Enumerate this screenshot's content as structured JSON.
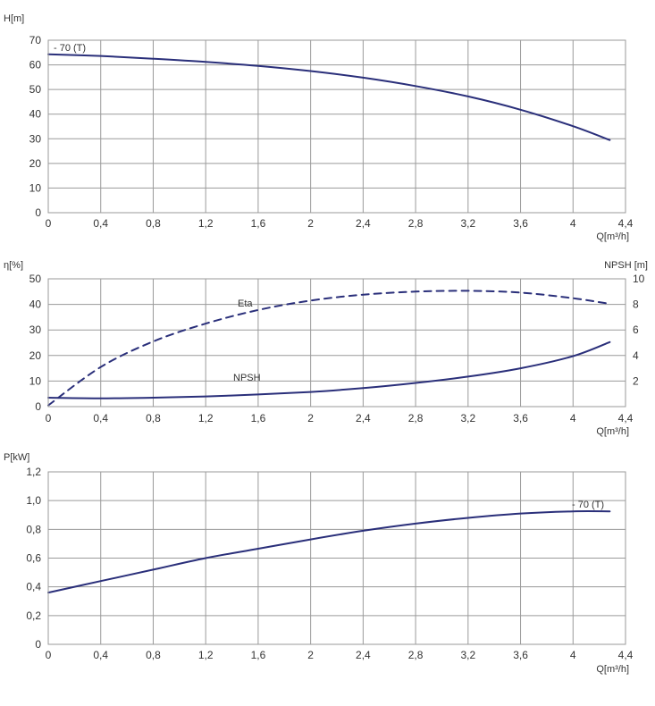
{
  "colors": {
    "curve": "#2a2f7a",
    "grid": "#9a9a9a",
    "text": "#333333"
  },
  "chart_data": [
    {
      "type": "line",
      "ylabel": "H[m]",
      "xlabel": "Q[m³/h]",
      "xlim": [
        0,
        4.4
      ],
      "ylim": [
        0,
        70
      ],
      "grid": true,
      "x_ticks": [
        "0",
        "0,4",
        "0,8",
        "1,2",
        "1,6",
        "2",
        "2,4",
        "2,8",
        "3,2",
        "3,6",
        "4",
        "4,4"
      ],
      "y_ticks": [
        "0",
        "10",
        "20",
        "30",
        "40",
        "50",
        "60",
        "70"
      ],
      "series": [
        {
          "name": "70 (T)",
          "x": [
            0,
            0.4,
            0.8,
            1.2,
            1.6,
            2.0,
            2.4,
            2.8,
            3.2,
            3.6,
            4.0,
            4.28
          ],
          "y": [
            64.3,
            63.6,
            62.5,
            61.2,
            59.6,
            57.5,
            54.8,
            51.4,
            47.2,
            41.8,
            35.1,
            29.5
          ]
        }
      ]
    },
    {
      "type": "line",
      "ylabel": "η[%]",
      "y2label": "NPSH [m]",
      "xlabel": "Q[m³/h]",
      "xlim": [
        0,
        4.4
      ],
      "ylim": [
        0,
        50
      ],
      "y2lim": [
        0,
        10
      ],
      "grid": true,
      "x_ticks": [
        "0",
        "0,4",
        "0,8",
        "1,2",
        "1,6",
        "2",
        "2,4",
        "2,8",
        "3,2",
        "3,6",
        "4",
        "4,4"
      ],
      "y_ticks": [
        "0",
        "10",
        "20",
        "30",
        "40",
        "50"
      ],
      "y2_ticks": [
        "2",
        "4",
        "6",
        "8",
        "10"
      ],
      "series": [
        {
          "name": "Eta",
          "axis": "left",
          "style": "dashed",
          "x": [
            0,
            0.4,
            0.8,
            1.2,
            1.6,
            2.0,
            2.4,
            2.8,
            3.2,
            3.6,
            4.0,
            4.28
          ],
          "y": [
            0.5,
            15.5,
            25.5,
            32.5,
            37.8,
            41.5,
            43.8,
            45.0,
            45.3,
            44.6,
            42.4,
            40.2
          ]
        },
        {
          "name": "NPSH",
          "axis": "right",
          "style": "solid",
          "x": [
            0,
            0.4,
            0.8,
            1.2,
            1.6,
            2.0,
            2.4,
            2.8,
            3.2,
            3.6,
            4.0,
            4.28
          ],
          "y": [
            0.7,
            0.65,
            0.7,
            0.8,
            0.95,
            1.15,
            1.45,
            1.85,
            2.35,
            3.0,
            3.95,
            5.05
          ]
        }
      ]
    },
    {
      "type": "line",
      "ylabel": "P[kW]",
      "xlabel": "Q[m³/h]",
      "xlim": [
        0,
        4.4
      ],
      "ylim": [
        0,
        1.2
      ],
      "grid": true,
      "x_ticks": [
        "0",
        "0,4",
        "0,8",
        "1,2",
        "1,6",
        "2",
        "2,4",
        "2,8",
        "3,2",
        "3,6",
        "4",
        "4,4"
      ],
      "y_ticks": [
        "0",
        "0,2",
        "0,4",
        "0,6",
        "0,8",
        "1,0",
        "1,2"
      ],
      "series": [
        {
          "name": "70 (T)",
          "x": [
            0,
            0.4,
            0.8,
            1.2,
            1.6,
            2.0,
            2.4,
            2.8,
            3.2,
            3.6,
            4.0,
            4.28
          ],
          "y": [
            0.36,
            0.44,
            0.52,
            0.6,
            0.665,
            0.73,
            0.79,
            0.84,
            0.88,
            0.91,
            0.925,
            0.925
          ]
        }
      ]
    }
  ]
}
